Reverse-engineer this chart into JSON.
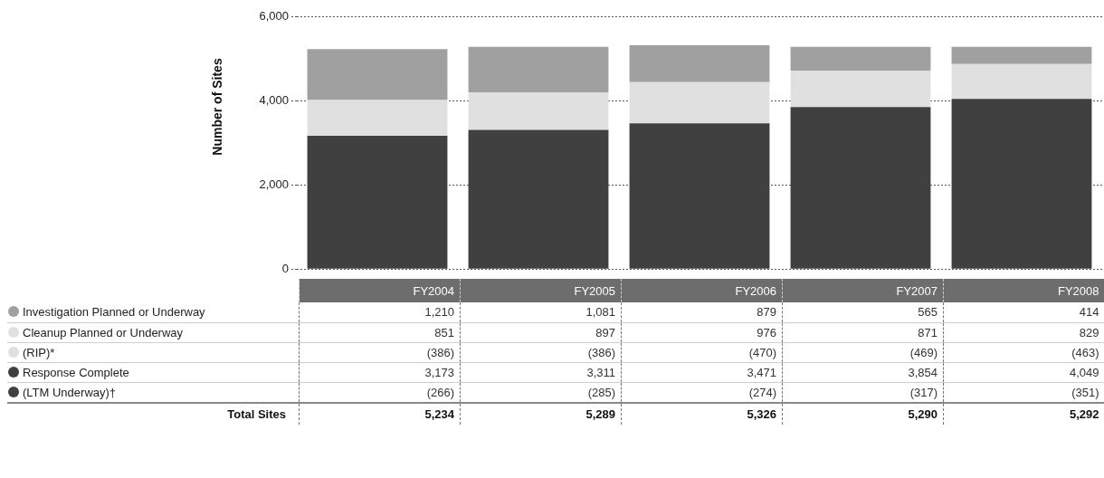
{
  "chart_data": {
    "type": "bar",
    "stacked": true,
    "ylabel": "Number of Sites",
    "categories": [
      "FY2004",
      "FY2005",
      "FY2006",
      "FY2007",
      "FY2008"
    ],
    "ylim": [
      0,
      6000
    ],
    "yticks": [
      {
        "value": 0,
        "label": "0"
      },
      {
        "value": 2000,
        "label": "2,000"
      },
      {
        "value": 4000,
        "label": "4,000"
      },
      {
        "value": 6000,
        "label": "6,000"
      }
    ],
    "grid": "y",
    "legend": "bottom left",
    "series": [
      {
        "name": "Response Complete",
        "color": "#404040",
        "values": [
          3173,
          3311,
          3471,
          3854,
          4049
        ],
        "value_labels": [
          "3,173",
          "3,311",
          "3,471",
          "3,854",
          "4,049"
        ]
      },
      {
        "name": "(LTM Underway)†",
        "color": "#404040",
        "values": [
          null,
          null,
          null,
          null,
          null
        ],
        "value_labels": [
          "(266)",
          "(285)",
          "(274)",
          "(317)",
          "(351)"
        ]
      },
      {
        "name": "Cleanup Planned or Underway",
        "color": "#e0e0e0",
        "values": [
          851,
          897,
          976,
          871,
          829
        ],
        "value_labels": [
          "851",
          "897",
          "976",
          "871",
          "829"
        ]
      },
      {
        "name": "(RIP)*",
        "color": "#e0e0e0",
        "values": [
          null,
          null,
          null,
          null,
          null
        ],
        "value_labels": [
          "(386)",
          "(386)",
          "(470)",
          "(469)",
          "(463)"
        ]
      },
      {
        "name": "Investigation Planned or Underway",
        "color": "#a0a0a0",
        "values": [
          1210,
          1081,
          879,
          565,
          414
        ],
        "value_labels": [
          "1,210",
          "1,081",
          "879",
          "565",
          "414"
        ]
      }
    ],
    "annotations": [
      "Total Sites",
      "5,234",
      "5,289",
      "5,326",
      "5,290",
      "5,292"
    ]
  }
}
